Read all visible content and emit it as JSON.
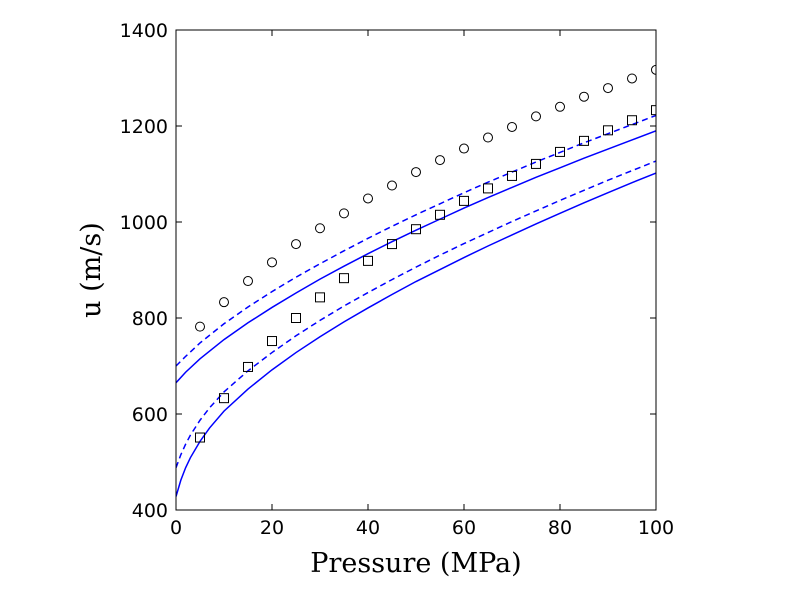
{
  "chart_data": {
    "type": "line",
    "title": "",
    "xlabel": "Pressure (MPa)",
    "ylabel": "u (m/s)",
    "xlim": [
      0,
      100
    ],
    "ylim": [
      400,
      1400
    ],
    "xticks": [
      "0",
      "20",
      "40",
      "60",
      "80",
      "100"
    ],
    "yticks": [
      "400",
      "600",
      "800",
      "1000",
      "1200",
      "1400"
    ],
    "grid": false,
    "legend": "none",
    "line_color": "#0000ff",
    "series": [
      {
        "kind": "line",
        "dash": "solid",
        "color": "#0000ff",
        "x": [
          0,
          2,
          5,
          10,
          15,
          20,
          25,
          30,
          35,
          40,
          45,
          50,
          55,
          60,
          65,
          70,
          75,
          80,
          85,
          90,
          95,
          100
        ],
        "y": [
          665,
          687,
          715,
          755,
          790,
          822,
          852,
          881,
          908,
          934,
          959,
          983,
          1006,
          1029,
          1051,
          1072,
          1093,
          1113,
          1133,
          1152,
          1171,
          1190
        ]
      },
      {
        "kind": "line",
        "dash": "dashed",
        "color": "#0000ff",
        "x": [
          0,
          2,
          5,
          10,
          15,
          20,
          25,
          30,
          35,
          40,
          45,
          50,
          55,
          60,
          65,
          70,
          75,
          80,
          85,
          90,
          95,
          100
        ],
        "y": [
          700,
          720,
          748,
          788,
          823,
          855,
          885,
          913,
          940,
          966,
          991,
          1015,
          1038,
          1061,
          1083,
          1104,
          1125,
          1145,
          1165,
          1184,
          1203,
          1222
        ]
      },
      {
        "kind": "line",
        "dash": "solid",
        "color": "#0000ff",
        "x": [
          0,
          1,
          2,
          3,
          5,
          7,
          10,
          15,
          20,
          25,
          30,
          35,
          40,
          45,
          50,
          55,
          60,
          65,
          70,
          75,
          80,
          85,
          90,
          95,
          100
        ],
        "y": [
          428,
          462,
          488,
          509,
          543,
          571,
          606,
          652,
          692,
          728,
          761,
          792,
          821,
          849,
          876,
          901,
          926,
          950,
          973,
          996,
          1018,
          1040,
          1061,
          1082,
          1102
        ]
      },
      {
        "kind": "line",
        "dash": "dashed",
        "color": "#0000ff",
        "x": [
          0,
          1,
          2,
          3,
          5,
          7,
          10,
          15,
          20,
          25,
          30,
          35,
          40,
          45,
          50,
          55,
          60,
          65,
          70,
          75,
          80,
          85,
          90,
          95,
          100
        ],
        "y": [
          488,
          515,
          537,
          556,
          587,
          613,
          646,
          690,
          728,
          763,
          795,
          825,
          853,
          880,
          906,
          931,
          955,
          978,
          1001,
          1023,
          1045,
          1066,
          1087,
          1107,
          1127
        ]
      },
      {
        "kind": "markers",
        "marker": "circle",
        "color": "#000000",
        "x": [
          5,
          10,
          15,
          20,
          25,
          30,
          35,
          40,
          45,
          50,
          55,
          60,
          65,
          70,
          75,
          80,
          85,
          90,
          95,
          100
        ],
        "y": [
          782,
          833,
          877,
          916,
          954,
          987,
          1018,
          1049,
          1076,
          1104,
          1129,
          1153,
          1176,
          1198,
          1220,
          1240,
          1261,
          1279,
          1299,
          1317
        ]
      },
      {
        "kind": "markers",
        "marker": "square",
        "color": "#000000",
        "x": [
          5,
          10,
          15,
          20,
          25,
          30,
          35,
          40,
          45,
          50,
          55,
          60,
          65,
          70,
          75,
          80,
          85,
          90,
          95,
          100
        ],
        "y": [
          551,
          633,
          698,
          752,
          800,
          843,
          883,
          919,
          954,
          985,
          1015,
          1044,
          1070,
          1096,
          1121,
          1146,
          1169,
          1191,
          1212,
          1233
        ]
      }
    ]
  }
}
